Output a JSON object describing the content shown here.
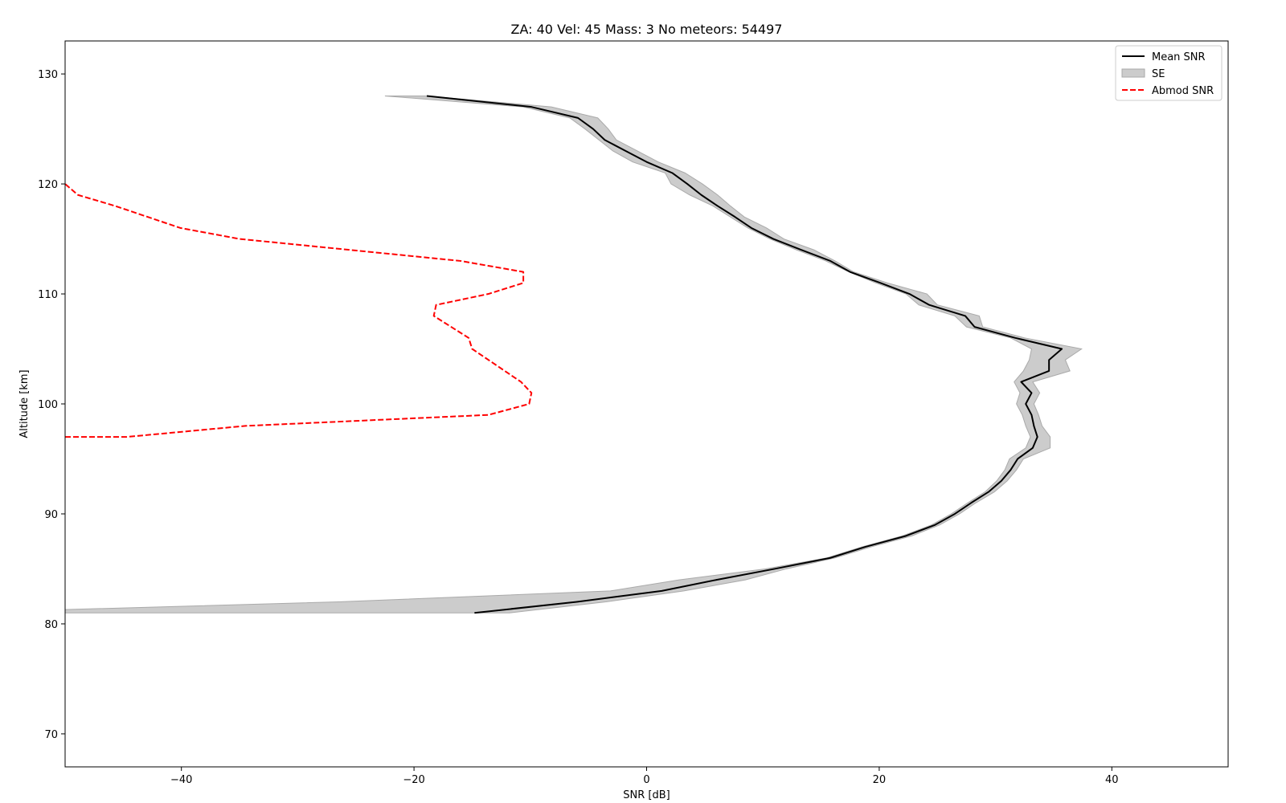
{
  "chart_data": {
    "type": "line",
    "title": "ZA: 40 Vel: 45 Mass: 3 No meteors: 54497",
    "xlabel": "SNR [dB]",
    "ylabel": "Altitude [km]",
    "xlim": [
      -50,
      50
    ],
    "ylim": [
      67,
      133
    ],
    "xticks": [
      -40,
      -20,
      0,
      20,
      40
    ],
    "xtick_labels": [
      "−40",
      "−20",
      "0",
      "20",
      "40"
    ],
    "yticks": [
      70,
      80,
      90,
      100,
      110,
      120,
      130
    ],
    "ytick_labels": [
      "70",
      "80",
      "90",
      "100",
      "110",
      "120",
      "130"
    ],
    "grid": false,
    "legend_position": "top-right",
    "legend": [
      {
        "label": "Mean SNR",
        "kind": "line",
        "color": "#000000",
        "dash": "solid"
      },
      {
        "label": "SE",
        "kind": "patch",
        "color": "#cccccc"
      },
      {
        "label": "Abmod SNR",
        "kind": "line",
        "color": "#ff0000",
        "dash": "dashed"
      }
    ],
    "series": [
      {
        "name": "Mean SNR",
        "color": "#000000",
        "dash": "solid",
        "points": [
          [
            -14.8,
            81
          ],
          [
            -6.0,
            82
          ],
          [
            1.3,
            83
          ],
          [
            6.0,
            84
          ],
          [
            11.0,
            85
          ],
          [
            15.8,
            86
          ],
          [
            18.8,
            87
          ],
          [
            22.3,
            88
          ],
          [
            24.8,
            89
          ],
          [
            26.5,
            90
          ],
          [
            27.9,
            91
          ],
          [
            29.4,
            92
          ],
          [
            30.5,
            93
          ],
          [
            31.3,
            94
          ],
          [
            31.9,
            95
          ],
          [
            33.2,
            96
          ],
          [
            33.6,
            97
          ],
          [
            33.3,
            98
          ],
          [
            33.1,
            99
          ],
          [
            32.6,
            100
          ],
          [
            33.1,
            101
          ],
          [
            32.2,
            102
          ],
          [
            34.6,
            103
          ],
          [
            34.6,
            104
          ],
          [
            35.7,
            105
          ],
          [
            31.7,
            106
          ],
          [
            28.2,
            107
          ],
          [
            27.4,
            108
          ],
          [
            24.3,
            109
          ],
          [
            22.6,
            110
          ],
          [
            20.1,
            111
          ],
          [
            17.5,
            112
          ],
          [
            15.8,
            113
          ],
          [
            13.3,
            114
          ],
          [
            10.9,
            115
          ],
          [
            9.0,
            116
          ],
          [
            7.6,
            117
          ],
          [
            6.1,
            118
          ],
          [
            4.7,
            119
          ],
          [
            3.5,
            120
          ],
          [
            2.2,
            121
          ],
          [
            0.0,
            122
          ],
          [
            -1.8,
            123
          ],
          [
            -3.6,
            124
          ],
          [
            -4.6,
            125
          ],
          [
            -5.9,
            126
          ],
          [
            -9.9,
            127
          ],
          [
            -18.9,
            128
          ]
        ]
      },
      {
        "name": "Abmod SNR",
        "color": "#ff0000",
        "dash": "dashed",
        "points": [
          [
            -50,
            97
          ],
          [
            -44.7,
            97
          ],
          [
            -34.5,
            98
          ],
          [
            -13.6,
            99
          ],
          [
            -10.1,
            100
          ],
          [
            -9.9,
            101
          ],
          [
            -10.8,
            102
          ],
          [
            -13.6,
            104
          ],
          [
            -15.0,
            105
          ],
          [
            -15.3,
            106
          ],
          [
            -18.3,
            108
          ],
          [
            -18.1,
            109
          ],
          [
            -13.6,
            110
          ],
          [
            -10.6,
            111
          ],
          [
            -10.6,
            112
          ],
          [
            -16.0,
            113
          ],
          [
            -35.0,
            115
          ],
          [
            -40.1,
            116
          ],
          [
            -45.7,
            118
          ],
          [
            -48.9,
            119
          ],
          [
            -50,
            120
          ]
        ]
      }
    ],
    "band": {
      "name": "SE",
      "color": "#cccccc",
      "edge_color": "#aaaaaa",
      "lower": [
        [
          -50,
          81
        ],
        [
          -50,
          81.3
        ],
        [
          -26.5,
          82
        ],
        [
          -3.1,
          83
        ],
        [
          2.8,
          84
        ],
        [
          10.2,
          85
        ],
        [
          15.5,
          86
        ],
        [
          18.5,
          87
        ],
        [
          22.0,
          88
        ],
        [
          24.5,
          89
        ],
        [
          26.2,
          90
        ],
        [
          27.6,
          91
        ],
        [
          29.1,
          92
        ],
        [
          30.1,
          93
        ],
        [
          30.8,
          94
        ],
        [
          31.2,
          95
        ],
        [
          32.6,
          96
        ],
        [
          33.0,
          97
        ],
        [
          32.6,
          98
        ],
        [
          32.3,
          99
        ],
        [
          31.8,
          100
        ],
        [
          32.1,
          101
        ],
        [
          31.6,
          102
        ],
        [
          32.4,
          103
        ],
        [
          32.9,
          104
        ],
        [
          33.1,
          105
        ],
        [
          31.3,
          106
        ],
        [
          27.5,
          107
        ],
        [
          26.5,
          108
        ],
        [
          23.4,
          109
        ],
        [
          22.3,
          110
        ],
        [
          19.7,
          111
        ],
        [
          17.4,
          112
        ],
        [
          15.4,
          113
        ],
        [
          12.9,
          114
        ],
        [
          10.6,
          115
        ],
        [
          8.7,
          116
        ],
        [
          7.2,
          117
        ],
        [
          5.7,
          118
        ],
        [
          3.7,
          119
        ],
        [
          2.1,
          120
        ],
        [
          1.6,
          121
        ],
        [
          -1.2,
          122
        ],
        [
          -2.9,
          123
        ],
        [
          -4.1,
          124
        ],
        [
          -5.3,
          125
        ],
        [
          -6.6,
          126
        ],
        [
          -10.6,
          127
        ],
        [
          -22.5,
          128
        ]
      ],
      "upper": [
        [
          -11.8,
          81
        ],
        [
          -3.5,
          82
        ],
        [
          3.2,
          83
        ],
        [
          8.5,
          84
        ],
        [
          12.0,
          85
        ],
        [
          16.2,
          86
        ],
        [
          19.3,
          87
        ],
        [
          22.8,
          88
        ],
        [
          25.2,
          89
        ],
        [
          26.9,
          90
        ],
        [
          28.3,
          91
        ],
        [
          29.9,
          92
        ],
        [
          31.0,
          93
        ],
        [
          31.8,
          94
        ],
        [
          32.4,
          95
        ],
        [
          34.7,
          96
        ],
        [
          34.7,
          97
        ],
        [
          34.0,
          98
        ],
        [
          33.7,
          99
        ],
        [
          33.3,
          100
        ],
        [
          33.8,
          101
        ],
        [
          33.2,
          102
        ],
        [
          36.4,
          103
        ],
        [
          36.0,
          104
        ],
        [
          37.4,
          105
        ],
        [
          32.5,
          106
        ],
        [
          28.9,
          107
        ],
        [
          28.6,
          108
        ],
        [
          25.0,
          109
        ],
        [
          24.1,
          110
        ],
        [
          20.7,
          111
        ],
        [
          17.8,
          112
        ],
        [
          16.2,
          113
        ],
        [
          14.4,
          114
        ],
        [
          11.8,
          115
        ],
        [
          10.3,
          116
        ],
        [
          8.4,
          117
        ],
        [
          7.2,
          118
        ],
        [
          6.1,
          119
        ],
        [
          4.8,
          120
        ],
        [
          3.3,
          121
        ],
        [
          1.0,
          122
        ],
        [
          -0.8,
          123
        ],
        [
          -2.6,
          124
        ],
        [
          -3.3,
          125
        ],
        [
          -4.2,
          126
        ],
        [
          -8.2,
          127
        ],
        [
          -18.9,
          128
        ]
      ]
    }
  }
}
